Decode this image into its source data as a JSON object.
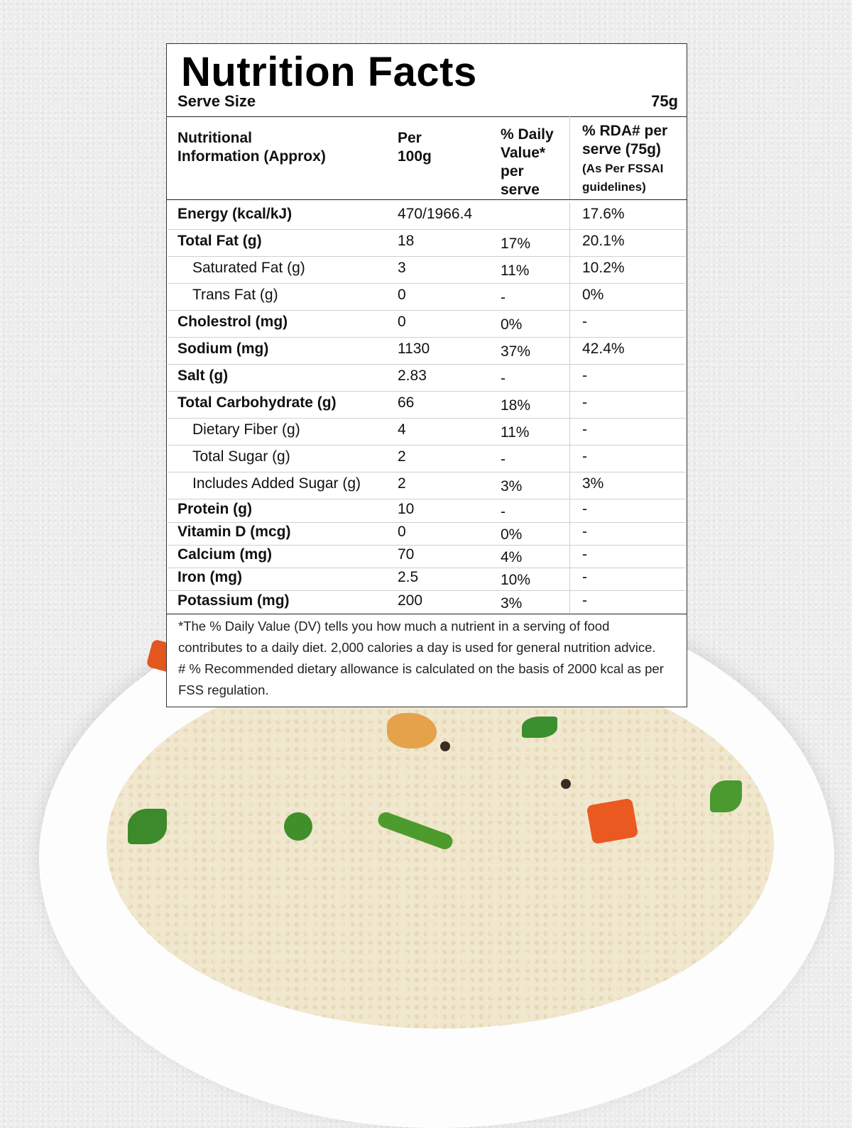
{
  "title": "Nutrition Facts",
  "serve_size": {
    "label": "Serve Size",
    "value": "75g"
  },
  "headers": {
    "nutrient": "Nutritional\nInformation (Approx)",
    "per100": "Per\n100g",
    "dv": "% Daily\nValue*\nper\nserve",
    "rda": "% RDA# per\nserve (75g)",
    "rda_note": "(As Per FSSAI\nguidelines)"
  },
  "rows": [
    {
      "name": "Energy (kcal/kJ)",
      "per100": "470/1966.4",
      "dv": "",
      "rda": "17.6%"
    },
    {
      "name": "Total Fat (g)",
      "per100": "18",
      "dv": "17%",
      "rda": "20.1%"
    },
    {
      "name": "Saturated Fat (g)",
      "per100": "3",
      "dv": "11%",
      "rda": "10.2%"
    },
    {
      "name": "Trans Fat (g)",
      "per100": "0",
      "dv": "-",
      "rda": "0%"
    },
    {
      "name": "Cholestrol (mg)",
      "per100": "0",
      "dv": "0%",
      "rda": "-"
    },
    {
      "name": "Sodium (mg)",
      "per100": "1130",
      "dv": "37%",
      "rda": "42.4%"
    },
    {
      "name": "Salt (g)",
      "per100": "2.83",
      "dv": "-",
      "rda": "-"
    },
    {
      "name": "Total Carbohydrate (g)",
      "per100": "66",
      "dv": "18%",
      "rda": "-"
    },
    {
      "name": "Dietary Fiber (g)",
      "per100": "4",
      "dv": "11%",
      "rda": "-"
    },
    {
      "name": "Total Sugar (g)",
      "per100": "2",
      "dv": "-",
      "rda": "-"
    },
    {
      "name": "Includes Added Sugar (g)",
      "per100": "2",
      "dv": "3%",
      "rda": "3%"
    },
    {
      "name": "Protein (g)",
      "per100": "10",
      "dv": "-",
      "rda": "-"
    },
    {
      "name": "Vitamin D (mcg)",
      "per100": "0",
      "dv": "0%",
      "rda": "-"
    },
    {
      "name": "Calcium (mg)",
      "per100": "70",
      "dv": "4%",
      "rda": "-"
    },
    {
      "name": "Iron (mg)",
      "per100": "2.5",
      "dv": "10%",
      "rda": "-"
    },
    {
      "name": "Potassium (mg)",
      "per100": "200",
      "dv": "3%",
      "rda": "-"
    }
  ],
  "footnote": {
    "line1": "*The % Daily Value (DV) tells you how much a nutrient in a serving of food",
    "line2": "contributes to a daily diet. 2,000 calories a day is used for general nutrition advice.",
    "line3": "# % Recommended dietary allowance is calculated on the basis of 2000 kcal as per",
    "line4": "FSS regulation."
  }
}
